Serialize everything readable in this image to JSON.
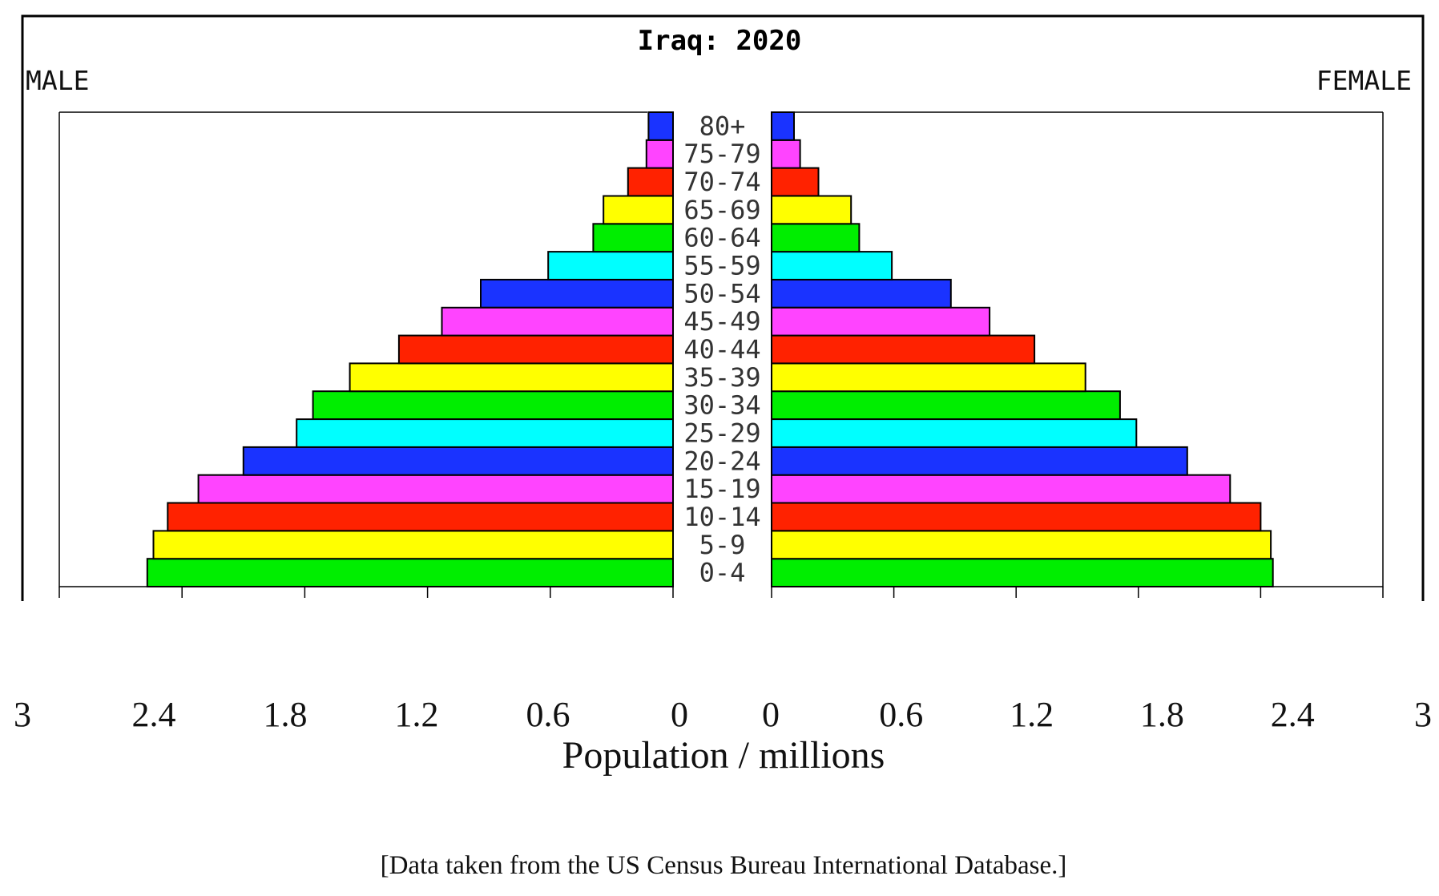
{
  "chart_data": {
    "type": "bar",
    "subtype": "population-pyramid",
    "title": "Iraq: 2020",
    "left_label": "MALE",
    "right_label": "FEMALE",
    "xlabel": "Population / millions",
    "note": "[Data taken from the US Census Bureau International Database.]",
    "xlim": [
      0,
      3
    ],
    "tick_labels_left": [
      "3",
      "2.4",
      "1.8",
      "1.2",
      "0.6",
      "0"
    ],
    "tick_labels_right": [
      "0",
      "0.6",
      "1.2",
      "1.8",
      "2.4",
      "3"
    ],
    "categories": [
      "0-4",
      "5-9",
      "10-14",
      "15-19",
      "20-24",
      "25-29",
      "30-34",
      "35-39",
      "40-44",
      "45-49",
      "50-54",
      "55-59",
      "60-64",
      "65-69",
      "70-74",
      "75-79",
      "80+"
    ],
    "series": [
      {
        "name": "MALE",
        "values": [
          2.57,
          2.54,
          2.47,
          2.32,
          2.1,
          1.84,
          1.76,
          1.58,
          1.34,
          1.13,
          0.94,
          0.61,
          0.39,
          0.34,
          0.22,
          0.13,
          0.12
        ]
      },
      {
        "name": "FEMALE",
        "values": [
          2.46,
          2.45,
          2.4,
          2.25,
          2.04,
          1.79,
          1.71,
          1.54,
          1.29,
          1.07,
          0.88,
          0.59,
          0.43,
          0.39,
          0.23,
          0.14,
          0.11
        ]
      }
    ],
    "bar_colors": [
      "#00ee00",
      "#ffff00",
      "#ff2200",
      "#ff44ff",
      "#1a33ff",
      "#00ffff"
    ]
  }
}
